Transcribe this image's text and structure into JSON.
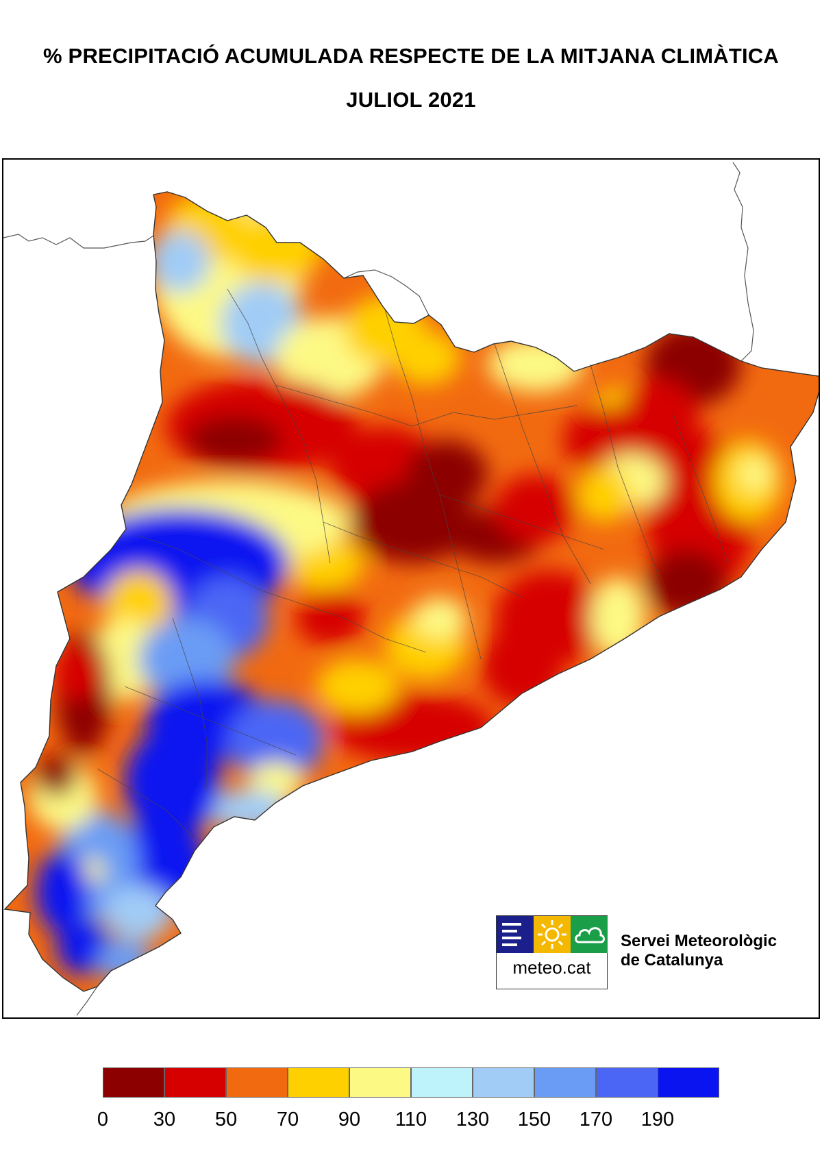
{
  "header": {
    "title": "% PRECIPITACIÓ ACUMULADA RESPECTE DE LA MITJANA CLIMÀTICA",
    "subtitle": "JULIOL 2021"
  },
  "logo": {
    "text": "meteo.cat",
    "org_line1": "Servei Meteorològic",
    "org_line2": "de Catalunya",
    "colors": [
      "#1a1f8c",
      "#f5b800",
      "#1a9f48"
    ]
  },
  "legend": {
    "classes": [
      {
        "from": 0,
        "to": 30,
        "color": "#8c0000"
      },
      {
        "from": 30,
        "to": 50,
        "color": "#d60000"
      },
      {
        "from": 50,
        "to": 70,
        "color": "#f26a10"
      },
      {
        "from": 70,
        "to": 90,
        "color": "#ffd000"
      },
      {
        "from": 90,
        "to": 110,
        "color": "#fdf985"
      },
      {
        "from": 110,
        "to": 130,
        "color": "#bff3fb"
      },
      {
        "from": 130,
        "to": 150,
        "color": "#a0ccf6"
      },
      {
        "from": 150,
        "to": 170,
        "color": "#6a9cf5"
      },
      {
        "from": 170,
        "to": 190,
        "color": "#4b66f5"
      },
      {
        "from": 190,
        "to": null,
        "color": "#0a14f0"
      }
    ],
    "labels": [
      "0",
      "30",
      "50",
      "70",
      "90",
      "110",
      "130",
      "150",
      "170",
      "190"
    ]
  }
}
